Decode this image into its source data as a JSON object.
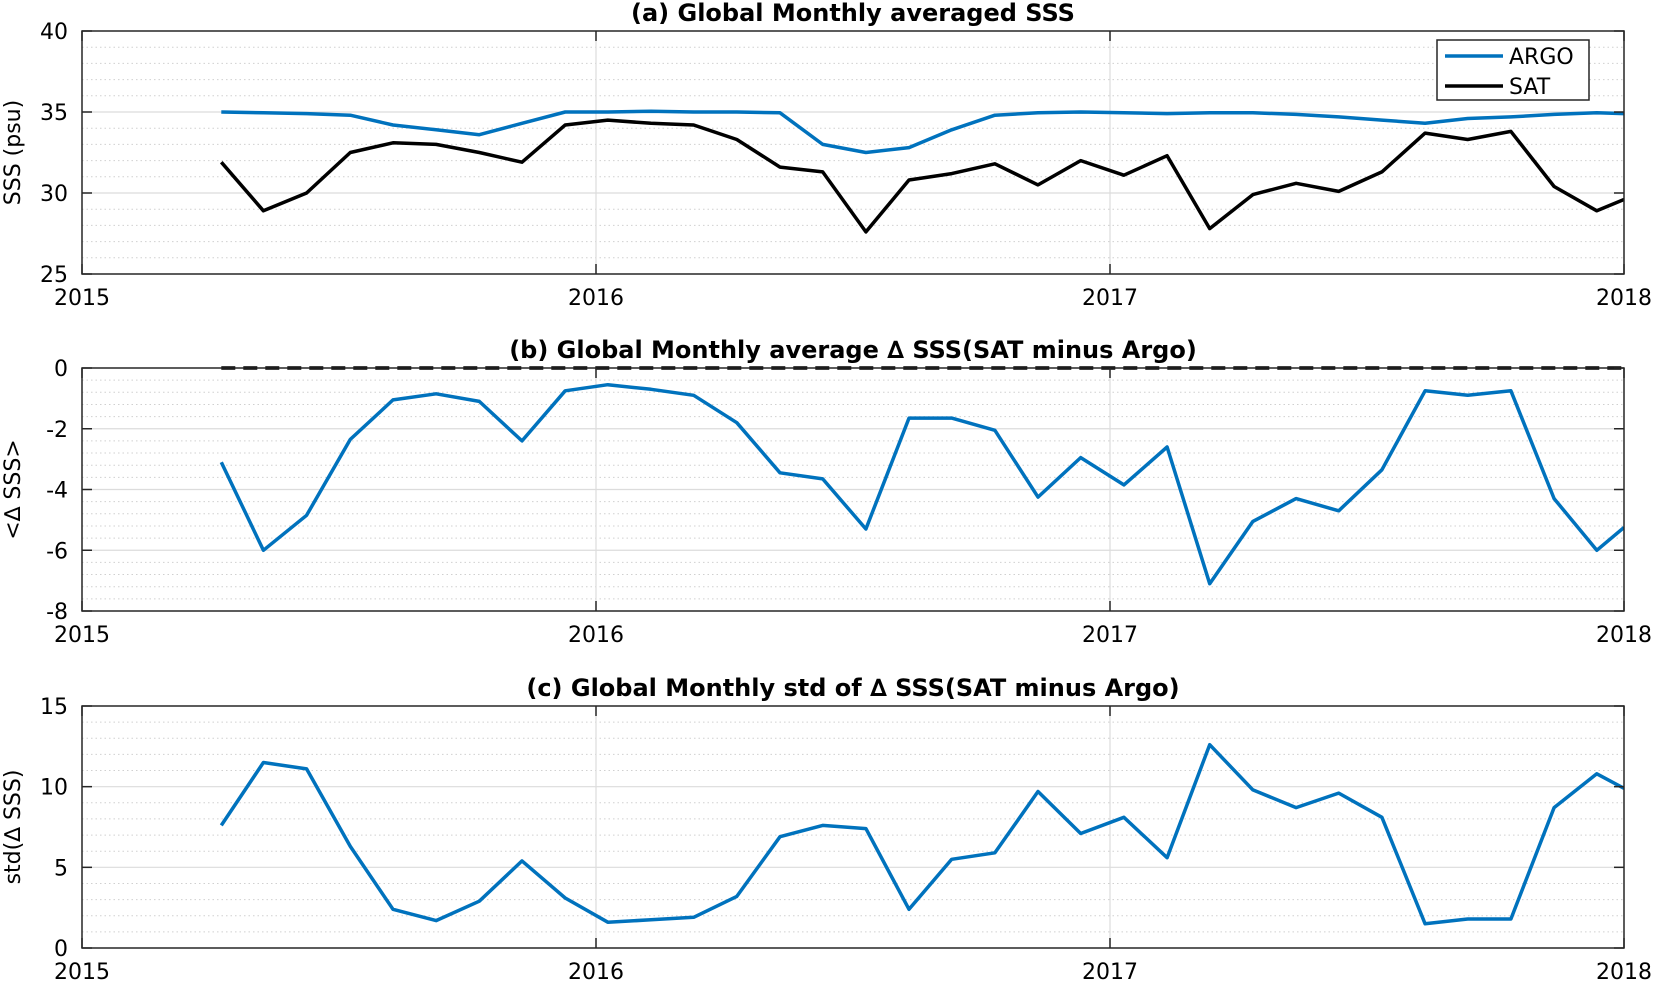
{
  "chart_data": [
    {
      "type": "line",
      "title": "(a) Global Monthly averaged SSS",
      "ylabel": "SSS (psu)",
      "xlim": [
        2015,
        2018
      ],
      "ylim": [
        25,
        40
      ],
      "yticks": [
        25,
        30,
        35,
        40
      ],
      "xticks": [
        2015,
        2016,
        2017,
        2018
      ],
      "xtick_labels": [
        "2015",
        "2016",
        "2017",
        "2018"
      ],
      "ytick_labels": [
        "25",
        "30",
        "35",
        "40"
      ],
      "grid": true,
      "minor_grid": true,
      "legend_position": "top-right",
      "x": [
        2015.271,
        2015.353,
        2015.437,
        2015.522,
        2015.605,
        2015.689,
        2015.773,
        2015.856,
        2015.94,
        2016.023,
        2016.107,
        2016.19,
        2016.274,
        2016.358,
        2016.441,
        2016.525,
        2016.609,
        2016.692,
        2016.776,
        2016.86,
        2016.943,
        2017.027,
        2017.111,
        2017.194,
        2017.278,
        2017.362,
        2017.445,
        2017.529,
        2017.613,
        2017.696,
        2017.78,
        2017.864,
        2017.947,
        2018.0
      ],
      "series": [
        {
          "name": "ARGO",
          "color": "#0072BD",
          "values": [
            35.0,
            34.95,
            34.9,
            34.8,
            34.2,
            33.9,
            33.6,
            34.3,
            35.0,
            35.0,
            35.05,
            35.0,
            35.0,
            34.95,
            33.0,
            32.5,
            32.8,
            33.9,
            34.8,
            34.95,
            35.0,
            34.95,
            34.9,
            34.95,
            34.95,
            34.85,
            34.7,
            34.5,
            34.3,
            34.6,
            34.7,
            34.85,
            34.95,
            34.9
          ]
        },
        {
          "name": "SAT",
          "color": "#000000",
          "values": [
            31.9,
            28.9,
            30.0,
            32.5,
            33.1,
            33.0,
            32.5,
            31.9,
            34.2,
            34.5,
            34.3,
            34.2,
            33.3,
            31.6,
            31.3,
            27.6,
            30.8,
            31.2,
            31.8,
            30.5,
            32.0,
            31.1,
            32.3,
            27.8,
            29.9,
            30.6,
            30.1,
            31.3,
            33.7,
            33.3,
            33.8,
            30.4,
            28.9,
            29.6
          ]
        }
      ]
    },
    {
      "type": "line",
      "title": "(b) Global Monthly average ∆ SSS(SAT minus Argo)",
      "ylabel": "<∆ SSS>",
      "xlim": [
        2015,
        2018
      ],
      "ylim": [
        -8,
        0
      ],
      "yticks": [
        -8,
        -6,
        -4,
        -2,
        0
      ],
      "xticks": [
        2015,
        2016,
        2017,
        2018
      ],
      "xtick_labels": [
        "2015",
        "2016",
        "2017",
        "2018"
      ],
      "ytick_labels": [
        "-8",
        "-6",
        "-4",
        "-2",
        "0"
      ],
      "grid": true,
      "minor_grid": true,
      "reference_line": {
        "y": 0,
        "style": "dashed",
        "color": "#000000"
      },
      "x": [
        2015.271,
        2015.353,
        2015.437,
        2015.522,
        2015.605,
        2015.689,
        2015.773,
        2015.856,
        2015.94,
        2016.023,
        2016.107,
        2016.19,
        2016.274,
        2016.358,
        2016.441,
        2016.525,
        2016.609,
        2016.692,
        2016.776,
        2016.86,
        2016.943,
        2017.027,
        2017.111,
        2017.194,
        2017.278,
        2017.362,
        2017.445,
        2017.529,
        2017.613,
        2017.696,
        2017.78,
        2017.864,
        2017.947,
        2018.0
      ],
      "series": [
        {
          "color": "#0072BD",
          "values": [
            -3.1,
            -6.0,
            -4.85,
            -2.35,
            -1.05,
            -0.85,
            -1.1,
            -2.4,
            -0.75,
            -0.55,
            -0.7,
            -0.9,
            -1.8,
            -3.45,
            -3.65,
            -5.3,
            -1.65,
            -1.65,
            -2.05,
            -4.25,
            -2.95,
            -3.85,
            -2.6,
            -7.1,
            -5.05,
            -4.3,
            -4.7,
            -3.35,
            -0.75,
            -0.9,
            -0.75,
            -4.3,
            -6.0,
            -5.25
          ]
        }
      ]
    },
    {
      "type": "line",
      "title": "(c) Global Monthly std of ∆ SSS(SAT minus Argo)",
      "ylabel": "std(∆ SSS)",
      "xlim": [
        2015,
        2018
      ],
      "ylim": [
        0,
        15
      ],
      "yticks": [
        0,
        5,
        10,
        15
      ],
      "xticks": [
        2015,
        2016,
        2017,
        2018
      ],
      "xtick_labels": [
        "2015",
        "2016",
        "2017",
        "2018"
      ],
      "ytick_labels": [
        "0",
        "5",
        "10",
        "15"
      ],
      "grid": true,
      "minor_grid": true,
      "x": [
        2015.271,
        2015.353,
        2015.437,
        2015.522,
        2015.605,
        2015.689,
        2015.773,
        2015.856,
        2015.94,
        2016.023,
        2016.107,
        2016.19,
        2016.274,
        2016.358,
        2016.441,
        2016.525,
        2016.609,
        2016.692,
        2016.776,
        2016.86,
        2016.943,
        2017.027,
        2017.111,
        2017.194,
        2017.278,
        2017.362,
        2017.445,
        2017.529,
        2017.613,
        2017.696,
        2017.78,
        2017.864,
        2017.947,
        2018.0
      ],
      "series": [
        {
          "color": "#0072BD",
          "values": [
            7.6,
            11.5,
            11.1,
            6.3,
            2.4,
            1.7,
            2.9,
            5.4,
            3.1,
            1.6,
            1.75,
            1.9,
            3.2,
            6.9,
            7.6,
            7.4,
            2.4,
            5.5,
            5.9,
            9.7,
            7.1,
            8.1,
            5.6,
            12.6,
            9.8,
            8.7,
            9.6,
            8.1,
            1.5,
            1.8,
            1.8,
            8.7,
            10.8,
            9.9
          ]
        }
      ]
    }
  ]
}
